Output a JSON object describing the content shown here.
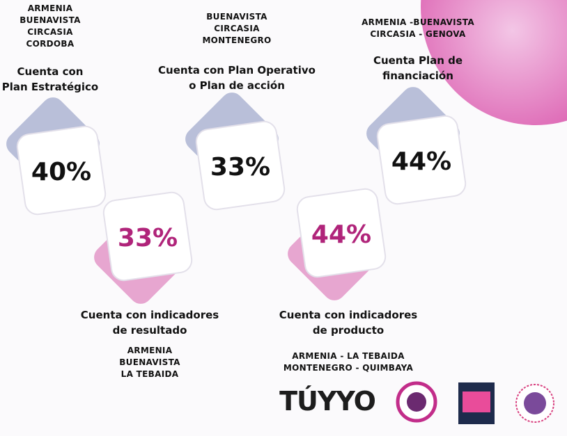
{
  "cards": [
    {
      "municipalities": [
        "ARMENIA",
        "BUENAVISTA",
        "CIRCASIA",
        "CORDOBA"
      ],
      "label": [
        "Cuenta con",
        "Plan Estratégico"
      ],
      "value": "40%"
    },
    {
      "municipalities": [
        "BUENAVISTA",
        "CIRCASIA",
        "MONTENEGRO"
      ],
      "label": [
        "Cuenta con Plan Operativo",
        "o Plan de acción"
      ],
      "value": "33%"
    },
    {
      "municipalities": [
        "ARMENIA -BUENAVISTA",
        "CIRCASIA - GENOVA"
      ],
      "label": [
        "Cuenta Plan de",
        "financiación"
      ],
      "value": "44%"
    },
    {
      "municipalities": [
        "ARMENIA",
        "BUENAVISTA",
        "LA TEBAIDA"
      ],
      "label": [
        "Cuenta con indicadores",
        "de resultado"
      ],
      "value": "33%"
    },
    {
      "municipalities": [
        "ARMENIA - LA TEBAIDA",
        "MONTENEGRO - QUIMBAYA"
      ],
      "label": [
        "Cuenta con indicadores",
        "de producto"
      ],
      "value": "44%"
    }
  ],
  "logos": {
    "main": "TÚYYO"
  }
}
